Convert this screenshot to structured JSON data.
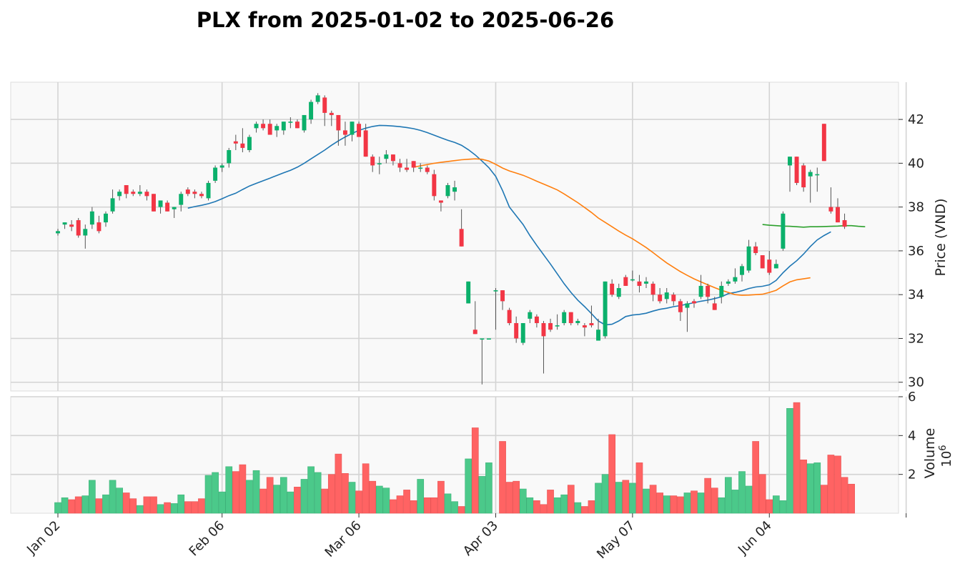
{
  "chart_data": {
    "type": "candlestick",
    "title": "PLX from 2025-01-02 to 2025-06-26",
    "ylabel": "Price (VND)",
    "volume_label": "Volume",
    "volume_exponent": "10",
    "volume_exponent_power": "6",
    "x_tick_labels": [
      "Jan 02",
      "Feb 06",
      "Mar 06",
      "Apr 03",
      "May 07",
      "Jun 04"
    ],
    "x_tick_indices": [
      0,
      24,
      44,
      64,
      84,
      104
    ],
    "price_ticks": [
      30,
      32,
      34,
      36,
      38,
      40,
      42
    ],
    "volume_ticks": [
      2,
      4,
      6
    ],
    "ylim": [
      29.6,
      43.7
    ],
    "volume_ylim": [
      0,
      6
    ],
    "grid": true,
    "up_color": "#0bb06b",
    "down_color": "#f23645",
    "volume_up_color": "#4bc98a",
    "volume_down_color": "#ff6363",
    "ohlc": [
      [
        36.8,
        37.0,
        36.7,
        36.9
      ],
      [
        37.2,
        37.3,
        37.0,
        37.3
      ],
      [
        37.2,
        37.4,
        36.9,
        37.1
      ],
      [
        37.4,
        37.5,
        36.6,
        36.7
      ],
      [
        36.7,
        37.2,
        36.1,
        37.0
      ],
      [
        37.2,
        38.0,
        37.0,
        37.8
      ],
      [
        37.3,
        37.6,
        36.8,
        36.9
      ],
      [
        37.3,
        37.8,
        37.1,
        37.7
      ],
      [
        37.8,
        38.8,
        37.7,
        38.4
      ],
      [
        38.5,
        38.8,
        38.3,
        38.7
      ],
      [
        39.0,
        39.0,
        38.4,
        38.6
      ],
      [
        38.7,
        38.8,
        38.5,
        38.6
      ],
      [
        38.6,
        39.0,
        38.5,
        38.7
      ],
      [
        38.7,
        38.8,
        38.3,
        38.5
      ],
      [
        38.6,
        38.6,
        37.8,
        37.8
      ],
      [
        38.0,
        38.3,
        37.7,
        38.3
      ],
      [
        38.2,
        38.3,
        37.8,
        37.8
      ],
      [
        37.9,
        38.0,
        37.5,
        38.0
      ],
      [
        38.1,
        38.7,
        37.8,
        38.6
      ],
      [
        38.8,
        38.9,
        38.5,
        38.6
      ],
      [
        38.7,
        38.8,
        38.4,
        38.6
      ],
      [
        38.6,
        38.7,
        38.4,
        38.5
      ],
      [
        38.4,
        39.2,
        38.3,
        39.1
      ],
      [
        39.2,
        39.9,
        39.1,
        39.8
      ],
      [
        39.8,
        40.0,
        39.6,
        39.9
      ],
      [
        40.0,
        40.7,
        39.8,
        40.6
      ],
      [
        41.0,
        41.3,
        40.6,
        40.9
      ],
      [
        40.9,
        41.6,
        40.5,
        40.7
      ],
      [
        40.6,
        41.3,
        40.5,
        41.2
      ],
      [
        41.6,
        41.9,
        41.4,
        41.8
      ],
      [
        41.8,
        42.0,
        41.5,
        41.6
      ],
      [
        41.8,
        42.0,
        41.4,
        41.3
      ],
      [
        41.5,
        41.8,
        41.2,
        41.7
      ],
      [
        41.5,
        41.9,
        41.3,
        41.9
      ],
      [
        41.9,
        42.1,
        41.6,
        41.9
      ],
      [
        41.9,
        42.0,
        41.6,
        41.6
      ],
      [
        41.5,
        42.1,
        41.4,
        42.2
      ],
      [
        42.0,
        42.9,
        41.8,
        42.8
      ],
      [
        42.8,
        43.2,
        42.7,
        43.1
      ],
      [
        43.0,
        43.1,
        41.7,
        42.3
      ],
      [
        42.3,
        42.4,
        41.7,
        42.2
      ],
      [
        42.2,
        42.2,
        40.8,
        41.5
      ],
      [
        41.5,
        41.9,
        40.8,
        41.3
      ],
      [
        41.3,
        41.9,
        41.0,
        41.9
      ],
      [
        41.8,
        41.9,
        41.3,
        41.2
      ],
      [
        41.5,
        41.8,
        40.3,
        40.3
      ],
      [
        40.3,
        40.4,
        39.6,
        39.9
      ],
      [
        40.0,
        40.3,
        39.5,
        40.0
      ],
      [
        40.2,
        40.6,
        40.0,
        40.4
      ],
      [
        40.4,
        40.4,
        39.9,
        40.1
      ],
      [
        40.0,
        40.2,
        39.6,
        39.8
      ],
      [
        39.8,
        40.2,
        39.6,
        39.7
      ],
      [
        40.1,
        40.1,
        39.6,
        39.8
      ],
      [
        39.8,
        40.0,
        39.6,
        39.8
      ],
      [
        39.8,
        39.9,
        39.5,
        39.6
      ],
      [
        39.5,
        39.7,
        38.3,
        38.5
      ],
      [
        38.3,
        38.3,
        37.8,
        38.2
      ],
      [
        38.5,
        39.1,
        38.4,
        39.0
      ],
      [
        38.7,
        39.2,
        38.3,
        38.9
      ],
      [
        37.0,
        37.9,
        36.2,
        36.2
      ],
      [
        33.6,
        34.6,
        33.6,
        34.6
      ],
      [
        32.4,
        33.7,
        32.2,
        32.2
      ],
      [
        32.0,
        32.0,
        29.9,
        32.0
      ],
      [
        32.0,
        32.0,
        32.0,
        32.0
      ],
      [
        34.2,
        34.3,
        32.4,
        34.2
      ],
      [
        34.2,
        34.2,
        33.3,
        33.7
      ],
      [
        33.3,
        33.4,
        32.6,
        32.7
      ],
      [
        32.7,
        33.0,
        31.8,
        32.0
      ],
      [
        31.8,
        32.7,
        31.7,
        32.7
      ],
      [
        32.9,
        33.3,
        32.7,
        33.2
      ],
      [
        33.0,
        33.1,
        32.5,
        32.7
      ],
      [
        32.7,
        32.8,
        30.4,
        32.1
      ],
      [
        32.7,
        32.9,
        32.3,
        32.4
      ],
      [
        32.6,
        33.1,
        32.4,
        32.6
      ],
      [
        32.7,
        33.3,
        32.6,
        33.2
      ],
      [
        33.2,
        33.2,
        32.6,
        32.7
      ],
      [
        32.7,
        32.9,
        32.6,
        32.8
      ],
      [
        32.6,
        32.7,
        32.1,
        32.5
      ],
      [
        32.7,
        33.5,
        32.5,
        32.6
      ],
      [
        31.9,
        32.9,
        31.9,
        32.4
      ],
      [
        32.1,
        34.6,
        32.0,
        34.6
      ],
      [
        34.5,
        34.7,
        33.9,
        34.0
      ],
      [
        33.9,
        34.5,
        33.8,
        34.3
      ],
      [
        34.8,
        34.9,
        34.4,
        34.4
      ],
      [
        34.7,
        35.1,
        34.6,
        34.7
      ],
      [
        34.6,
        34.9,
        34.1,
        34.4
      ],
      [
        34.5,
        34.8,
        34.3,
        34.6
      ],
      [
        34.5,
        34.6,
        33.7,
        34.0
      ],
      [
        34.0,
        34.3,
        33.6,
        33.7
      ],
      [
        33.8,
        34.3,
        33.6,
        34.1
      ],
      [
        34.0,
        34.1,
        33.5,
        33.7
      ],
      [
        33.7,
        33.8,
        32.8,
        33.2
      ],
      [
        33.4,
        33.7,
        32.3,
        33.6
      ],
      [
        33.7,
        33.8,
        33.4,
        33.6
      ],
      [
        33.9,
        34.9,
        33.8,
        34.4
      ],
      [
        34.4,
        34.5,
        33.6,
        33.9
      ],
      [
        33.6,
        33.9,
        33.3,
        33.3
      ],
      [
        33.9,
        34.6,
        33.6,
        34.4
      ],
      [
        34.5,
        34.7,
        34.4,
        34.6
      ],
      [
        34.6,
        35.2,
        34.5,
        34.8
      ],
      [
        34.9,
        35.4,
        34.6,
        35.3
      ],
      [
        35.1,
        36.5,
        35.0,
        36.2
      ],
      [
        36.2,
        36.4,
        35.8,
        35.9
      ],
      [
        35.8,
        35.8,
        35.2,
        35.2
      ],
      [
        35.6,
        36.0,
        34.9,
        35.0
      ],
      [
        35.2,
        35.6,
        35.2,
        35.4
      ],
      [
        36.1,
        37.8,
        36.0,
        37.7
      ],
      [
        39.9,
        40.3,
        38.7,
        40.3
      ],
      [
        40.3,
        40.3,
        39.0,
        39.1
      ],
      [
        39.9,
        40.0,
        38.7,
        38.9
      ],
      [
        39.4,
        39.7,
        38.2,
        39.6
      ],
      [
        39.5,
        39.8,
        38.7,
        39.5
      ],
      [
        41.8,
        41.8,
        40.1,
        40.1
      ],
      [
        38.0,
        38.9,
        37.7,
        37.8
      ],
      [
        38.0,
        38.4,
        37.3,
        37.3
      ],
      [
        37.4,
        37.7,
        37.0,
        37.1
      ]
    ],
    "volume": [
      0.55,
      0.8,
      0.7,
      0.85,
      0.9,
      1.7,
      0.75,
      0.95,
      1.7,
      1.3,
      1.05,
      0.75,
      0.4,
      0.85,
      0.85,
      0.45,
      0.55,
      0.5,
      0.95,
      0.6,
      0.6,
      0.75,
      1.95,
      2.1,
      1.1,
      2.4,
      2.15,
      2.5,
      1.7,
      2.2,
      1.25,
      1.85,
      1.45,
      1.85,
      1.1,
      1.35,
      1.75,
      2.4,
      2.1,
      1.25,
      2.0,
      3.05,
      2.05,
      1.6,
      1.15,
      2.55,
      1.65,
      1.4,
      1.3,
      0.7,
      0.9,
      1.2,
      0.65,
      1.75,
      0.8,
      0.8,
      1.65,
      1.0,
      0.6,
      0.35,
      2.8,
      4.4,
      1.9,
      2.6,
      0.0,
      3.7,
      1.6,
      1.65,
      1.25,
      0.8,
      0.65,
      0.45,
      1.2,
      0.8,
      0.95,
      1.45,
      0.55,
      0.35,
      0.65,
      1.55,
      2.0,
      4.05,
      1.6,
      1.7,
      1.55,
      2.6,
      1.25,
      1.45,
      1.05,
      0.9,
      0.9,
      0.85,
      1.05,
      1.15,
      1.05,
      1.8,
      1.3,
      0.8,
      1.85,
      1.2,
      2.15,
      1.4,
      3.7,
      2.0,
      0.7,
      0.9,
      0.65,
      5.4,
      5.7,
      2.75,
      2.55,
      2.6,
      1.45,
      3.0,
      2.95,
      1.85,
      1.5
    ],
    "moving_averages": [
      {
        "color": "#1f77b4",
        "start_index": 19,
        "values": [
          37.95,
          38.02,
          38.08,
          38.15,
          38.25,
          38.38,
          38.52,
          38.63,
          38.8,
          38.96,
          39.08,
          39.2,
          39.32,
          39.44,
          39.56,
          39.68,
          39.82,
          40.0,
          40.2,
          40.4,
          40.6,
          40.82,
          41.02,
          41.2,
          41.36,
          41.5,
          41.6,
          41.68,
          41.73,
          41.72,
          41.7,
          41.67,
          41.63,
          41.58,
          41.5,
          41.4,
          41.28,
          41.16,
          41.05,
          40.95,
          40.82,
          40.62,
          40.38,
          40.1,
          39.8,
          39.4,
          38.75,
          38.0,
          37.6,
          37.2,
          36.7,
          36.25,
          35.82,
          35.4,
          34.95,
          34.5,
          34.1,
          33.75,
          33.45,
          33.13,
          32.8,
          32.62,
          32.65,
          32.8,
          33.0,
          33.07,
          33.1,
          33.15,
          33.25,
          33.33,
          33.38,
          33.45,
          33.5,
          33.57,
          33.63,
          33.7,
          33.75,
          33.82,
          33.9,
          34.05,
          34.1,
          34.18,
          34.28,
          34.35,
          34.38,
          34.45,
          34.65,
          35.0,
          35.3,
          35.55,
          35.85,
          36.2,
          36.5,
          36.7,
          36.87
        ]
      },
      {
        "color": "#ff7f0e",
        "start_index": 52,
        "values": [
          39.82,
          39.88,
          39.94,
          40.0,
          40.04,
          40.08,
          40.12,
          40.16,
          40.18,
          40.2,
          40.18,
          40.1,
          39.95,
          39.78,
          39.65,
          39.55,
          39.45,
          39.32,
          39.18,
          39.05,
          38.92,
          38.78,
          38.6,
          38.4,
          38.2,
          37.98,
          37.75,
          37.5,
          37.3,
          37.1,
          36.9,
          36.72,
          36.55,
          36.35,
          36.15,
          35.92,
          35.68,
          35.45,
          35.25,
          35.05,
          34.88,
          34.72,
          34.58,
          34.45,
          34.32,
          34.2,
          34.1,
          34.0,
          33.97,
          33.98,
          34.0,
          34.02,
          34.1,
          34.2,
          34.4,
          34.58,
          34.68,
          34.72,
          34.77
        ]
      },
      {
        "color": "#2ca02c",
        "start_index": 103,
        "values": [
          37.2,
          37.17,
          37.15,
          37.13,
          37.12,
          37.1,
          37.08,
          37.1,
          37.1,
          37.11,
          37.12,
          37.13,
          37.15,
          37.15,
          37.12,
          37.1
        ]
      }
    ]
  }
}
